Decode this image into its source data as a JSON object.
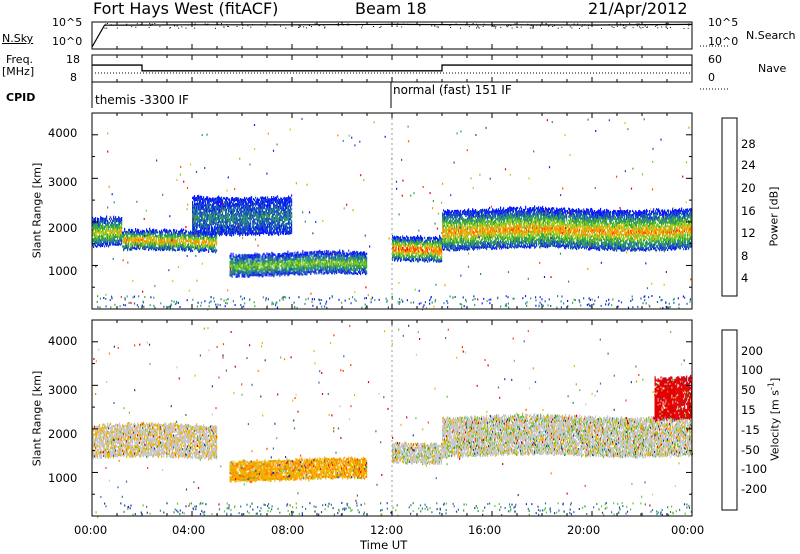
{
  "header": {
    "title": "Fort Hays West (fitACF)",
    "beam": "Beam 18",
    "date": "21/Apr/2012"
  },
  "noise_panel": {
    "left_label": "N.Sky",
    "right_label": "N.Search",
    "left_ticks": [
      "10^5",
      "10^0"
    ],
    "right_ticks": [
      "10^5",
      "10^0"
    ]
  },
  "freq_panel": {
    "left_label_1": "Freq.",
    "left_label_2": "[MHz]",
    "right_label": "Nave",
    "left_ticks": [
      "18",
      "8"
    ],
    "right_ticks": [
      "60",
      "0"
    ]
  },
  "cpid_panel": {
    "label": "CPID",
    "modes": [
      {
        "name": "themis -3300 IF",
        "start": "00:00"
      },
      {
        "name": "normal (fast) 151 IF",
        "start": "12:00"
      }
    ]
  },
  "xaxis": {
    "label": "Time UT",
    "ticks": [
      "00:00",
      "04:00",
      "08:00",
      "12:00",
      "16:00",
      "20:00",
      "00:00"
    ]
  },
  "power_panel": {
    "ylabel": "Slant Range [km]",
    "yticks": [
      "4000",
      "3000",
      "2000",
      "1000"
    ],
    "colorbar_label": "Power [dB]",
    "colorbar_ticks": [
      "28",
      "24",
      "20",
      "16",
      "12",
      "8",
      "4"
    ],
    "colors": [
      "#0a1aff",
      "#1f4fbf",
      "#2a8a8a",
      "#3fa63f",
      "#7acc2a",
      "#d9c21f",
      "#ff8c00",
      "#ff4a00",
      "#e60000"
    ]
  },
  "velocity_panel": {
    "ylabel": "Slant Range [km]",
    "yticks": [
      "4000",
      "3000",
      "2000",
      "1000"
    ],
    "colorbar_label": "Velocity [m s",
    "colorbar_label_exp": "-1",
    "colorbar_label_end": "]",
    "colorbar_ticks": [
      "200",
      "100",
      "50",
      "15",
      "-15",
      "-50",
      "-100",
      "-200"
    ],
    "colors": [
      "#1a3aa8",
      "#2e6bb0",
      "#2e8a5a",
      "#66c23a",
      "#c8c8c8",
      "#f0b400",
      "#ff8000",
      "#ff4000",
      "#e00000"
    ]
  },
  "chart_data": [
    {
      "type": "line",
      "name": "noise",
      "xlabel": "",
      "ylabel": "N.Sky",
      "xlim": [
        "00:00",
        "24:00"
      ],
      "x": [
        "00:00",
        "00:30",
        "04:00",
        "08:00",
        "12:00",
        "16:00",
        "20:00",
        "24:00"
      ],
      "series": [
        {
          "values": [
            1,
            100000,
            120000,
            120000,
            150000,
            120000,
            110000,
            150000
          ]
        }
      ]
    },
    {
      "type": "line",
      "name": "frequency",
      "xlabel": "",
      "ylabel": "Freq. [MHz]",
      "ylim": [
        8,
        18
      ],
      "x": [
        "00:00",
        "02:00",
        "14:00",
        "24:00"
      ],
      "series": [
        {
          "values": [
            14.5,
            12,
            14.5,
            14.5
          ]
        }
      ]
    },
    {
      "type": "heatmap",
      "name": "power",
      "xlabel": "Time UT",
      "ylabel": "Slant Range [km]",
      "ylim": [
        0,
        4500
      ],
      "value_label": "Power [dB]",
      "value_range": [
        0,
        30
      ],
      "regions": [
        {
          "t_start": 0.0,
          "t_end": 1.2,
          "range_low": 1400,
          "range_high": 2100,
          "peak_db": 16
        },
        {
          "t_start": 1.2,
          "t_end": 5.0,
          "range_low": 1300,
          "range_high": 1800,
          "peak_db": 22
        },
        {
          "t_start": 4.0,
          "t_end": 8.0,
          "range_low": 1700,
          "range_high": 2600,
          "peak_db": 8
        },
        {
          "t_start": 5.5,
          "t_end": 11.0,
          "range_low": 750,
          "range_high": 1300,
          "peak_db": 14
        },
        {
          "t_start": 12.0,
          "t_end": 14.0,
          "range_low": 1100,
          "range_high": 1700,
          "peak_db": 24
        },
        {
          "t_start": 14.0,
          "t_end": 24.0,
          "range_low": 1350,
          "range_high": 2300,
          "peak_db": 22
        }
      ]
    },
    {
      "type": "heatmap",
      "name": "velocity",
      "xlabel": "Time UT",
      "ylabel": "Slant Range [km]",
      "ylim": [
        0,
        4500
      ],
      "value_label": "Velocity [m s-1]",
      "value_range": [
        -200,
        200
      ],
      "regions": [
        {
          "t_start": 0.0,
          "t_end": 5.0,
          "range_low": 1300,
          "range_high": 2100,
          "vel": -5
        },
        {
          "t_start": 5.5,
          "t_end": 11.0,
          "range_low": 800,
          "range_high": 1300,
          "vel": -40
        },
        {
          "t_start": 12.0,
          "t_end": 14.0,
          "range_low": 1200,
          "range_high": 1700,
          "vel": 0
        },
        {
          "t_start": 14.0,
          "t_end": 24.0,
          "range_low": 1350,
          "range_high": 2300,
          "vel": 0
        },
        {
          "t_start": 22.5,
          "t_end": 24.0,
          "range_low": 2200,
          "range_high": 3200,
          "vel": -180
        }
      ]
    }
  ]
}
